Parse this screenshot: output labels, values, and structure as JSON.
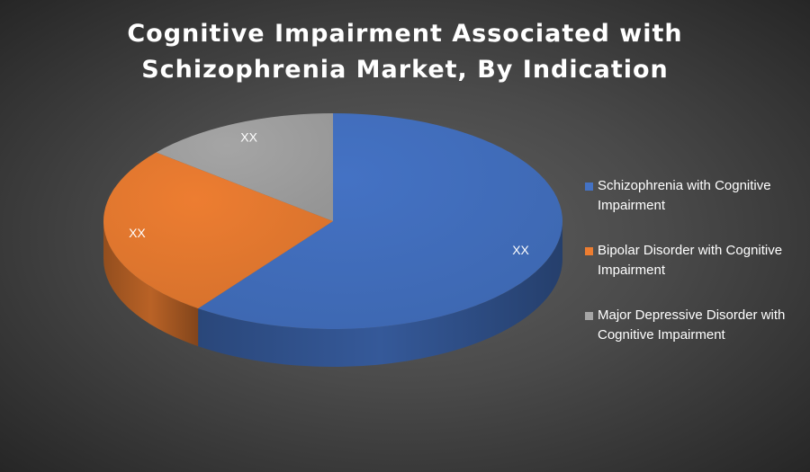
{
  "chart_data": {
    "type": "pie",
    "title_lines": [
      "Cognitive Impairment Associated with",
      "Schizophrenia Market, By Indication"
    ],
    "categories": [
      "Schizophrenia with Cognitive Impairment",
      "Bipolar Disorder with Cognitive Impairment",
      "Major Depressive Disorder with Cognitive Impairment"
    ],
    "values": [
      60,
      26,
      14
    ],
    "data_labels": [
      "XX",
      "XX",
      "XX"
    ],
    "colors": [
      "#4472C4",
      "#ED7D31",
      "#A5A5A5"
    ],
    "legend_position": "right",
    "style": "3d"
  },
  "legend": {
    "items": [
      {
        "label": "Schizophrenia with Cognitive Impairment",
        "color": "#4472C4"
      },
      {
        "label": "Bipolar Disorder with Cognitive Impairment",
        "color": "#ED7D31"
      },
      {
        "label": "Major Depressive Disorder with Cognitive Impairment",
        "color": "#A5A5A5"
      }
    ]
  }
}
